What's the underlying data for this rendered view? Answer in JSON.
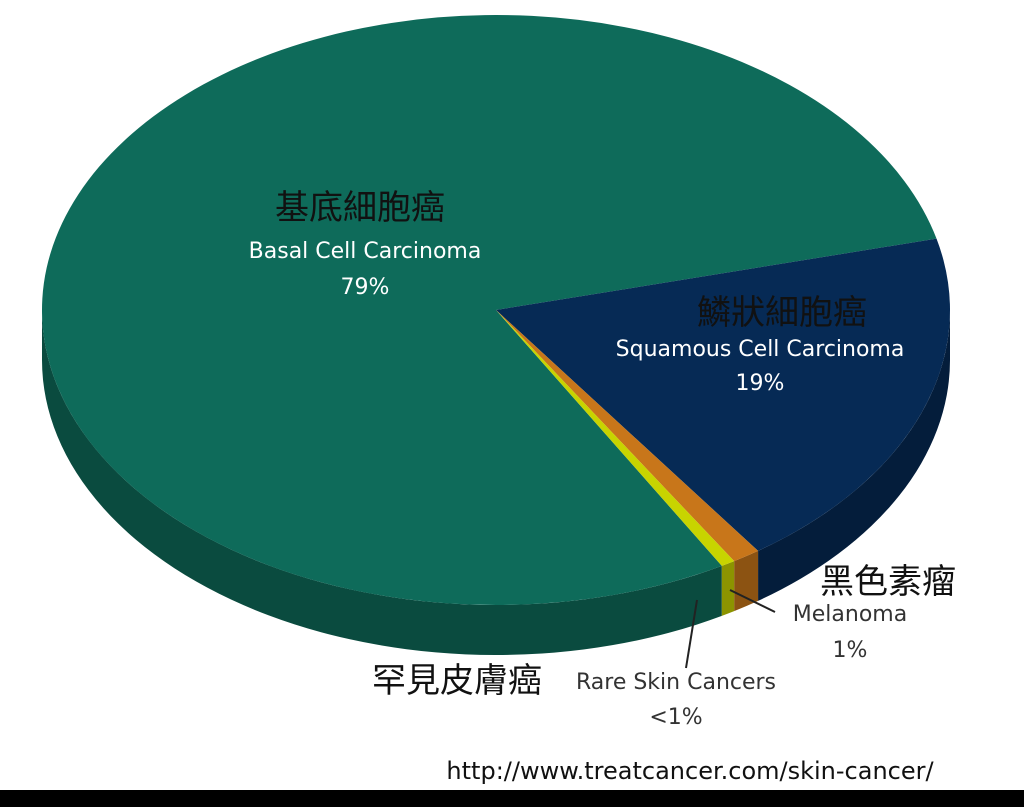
{
  "chart_data": {
    "type": "pie",
    "categories": [
      "Basal Cell Carcinoma",
      "Squamous Cell Carcinoma",
      "Melanoma",
      "Rare Skin Cancers"
    ],
    "categories_zh": [
      "基底細胞癌",
      "鱗狀細胞癌",
      "黑色素瘤",
      "罕見皮膚癌"
    ],
    "values": [
      79,
      19,
      1,
      0.5
    ],
    "value_labels": [
      "79%",
      "19%",
      "1%",
      "<1%"
    ],
    "colors": [
      "#0e6b5a",
      "#062a55",
      "#c8761a",
      "#c8d400"
    ],
    "source": "http://www.treatcancer.com/skin-cancer/"
  }
}
